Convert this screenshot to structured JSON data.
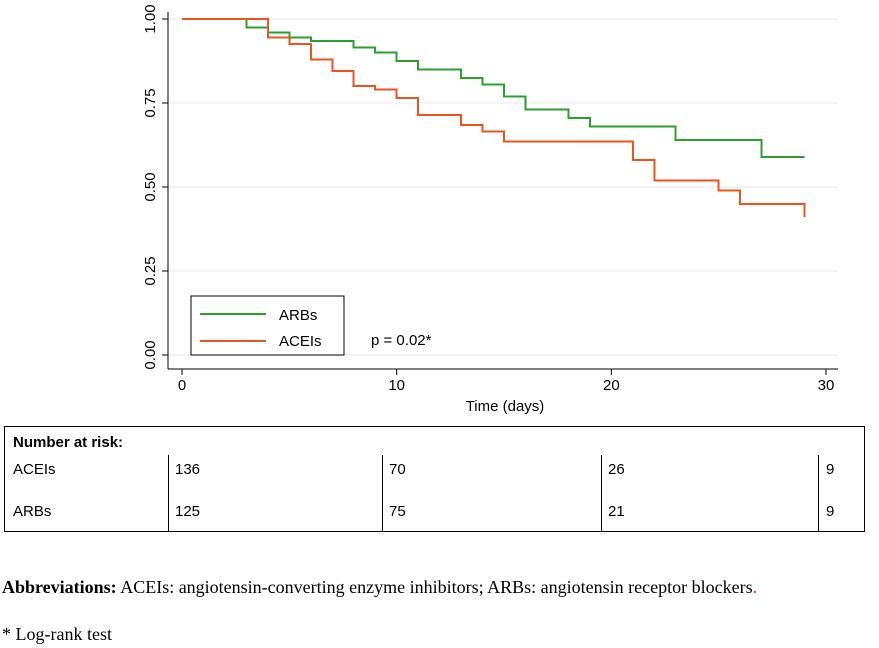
{
  "chart_data": {
    "type": "line",
    "subtype": "kaplan-meier step",
    "title": "",
    "xlabel": "Time (days)",
    "ylabel": "",
    "xlim": [
      0,
      30
    ],
    "ylim": [
      0,
      1
    ],
    "x_ticks": [
      0,
      10,
      20,
      30
    ],
    "x_tick_labels": [
      "0",
      "10",
      "20",
      "30"
    ],
    "y_ticks": [
      0,
      0.25,
      0.5,
      0.75,
      1
    ],
    "y_tick_labels": [
      "0.00",
      "0.25",
      "0.50",
      "0.75",
      "1.00"
    ],
    "grid": "horizontal",
    "legend_position": "bottom-left",
    "annotation": "p = 0.02*",
    "series": [
      {
        "name": "ARBs",
        "color": "#2ca02c",
        "x": [
          0,
          3,
          4,
          5,
          6,
          8,
          9,
          10,
          11,
          13,
          14,
          15,
          16,
          18,
          19,
          23,
          27,
          29
        ],
        "y": [
          1.0,
          0.975,
          0.96,
          0.945,
          0.935,
          0.915,
          0.9,
          0.875,
          0.85,
          0.825,
          0.805,
          0.77,
          0.73,
          0.705,
          0.68,
          0.64,
          0.59,
          0.59
        ]
      },
      {
        "name": "ACEIs",
        "color": "#f0541e",
        "x": [
          0,
          4,
          5,
          6,
          7,
          8,
          9,
          10,
          11,
          13,
          14,
          15,
          21,
          22,
          25,
          26,
          29,
          29
        ],
        "y": [
          1.0,
          0.945,
          0.925,
          0.88,
          0.845,
          0.8,
          0.79,
          0.765,
          0.715,
          0.685,
          0.665,
          0.635,
          0.58,
          0.52,
          0.49,
          0.45,
          0.45,
          0.41
        ]
      }
    ]
  },
  "risk_table": {
    "title": "Number at risk:",
    "rows": [
      {
        "label": "ACEIs",
        "values": [
          "136",
          "70",
          "26",
          "9"
        ]
      },
      {
        "label": "ARBs",
        "values": [
          "125",
          "75",
          "21",
          "9"
        ]
      }
    ]
  },
  "notes": {
    "abbr_label": "Abbreviations:",
    "abbr_text": " ACEIs: angiotensin-converting enzyme inhibitors; ARBs: angiotensin receptor blockers",
    "abbr_tail": ".",
    "footnote": "* Log-rank test"
  }
}
